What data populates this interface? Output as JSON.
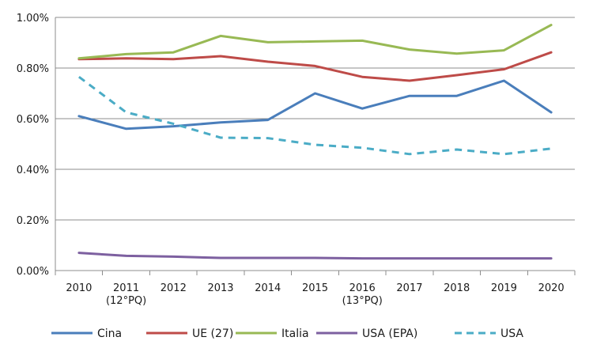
{
  "chart_data": {
    "type": "line",
    "x_labels": [
      [
        "2010"
      ],
      [
        "2011",
        "(12°PQ)"
      ],
      [
        "2012"
      ],
      [
        "2013"
      ],
      [
        "2014"
      ],
      [
        "2015"
      ],
      [
        "2016",
        "(13°PQ)"
      ],
      [
        "2017"
      ],
      [
        "2018"
      ],
      [
        "2019"
      ],
      [
        "2020"
      ]
    ],
    "y_ticks": [
      "0.00%",
      "0.20%",
      "0.40%",
      "0.60%",
      "0.80%",
      "1.00%"
    ],
    "y_tick_values": [
      0,
      0.2,
      0.4,
      0.6,
      0.8,
      1.0
    ],
    "ylim": [
      0,
      1.0
    ],
    "y_unit": "%",
    "grid": "horizontal",
    "legend_position": "bottom",
    "series": [
      {
        "name": "Cina",
        "color": "#4a7ebb",
        "dashed": false,
        "values": [
          0.61,
          0.56,
          0.57,
          0.585,
          0.595,
          0.7,
          0.64,
          0.69,
          0.69,
          0.75,
          0.625
        ]
      },
      {
        "name": "UE (27)",
        "color": "#be4b48",
        "dashed": false,
        "values": [
          0.835,
          0.838,
          0.835,
          0.847,
          0.825,
          0.808,
          0.765,
          0.75,
          0.772,
          0.795,
          0.862
        ]
      },
      {
        "name": "Italia",
        "color": "#98b954",
        "dashed": false,
        "values": [
          0.838,
          0.855,
          0.862,
          0.927,
          0.902,
          0.905,
          0.908,
          0.873,
          0.857,
          0.87,
          0.97
        ]
      },
      {
        "name": "USA (EPA)",
        "color": "#7d60a0",
        "dashed": false,
        "values": [
          0.07,
          0.058,
          0.055,
          0.05,
          0.05,
          0.05,
          0.048,
          0.048,
          0.048,
          0.048,
          0.048
        ]
      },
      {
        "name": "USA",
        "color": "#4bacc6",
        "dashed": true,
        "values": [
          0.765,
          0.625,
          0.58,
          0.525,
          0.523,
          0.497,
          0.485,
          0.46,
          0.478,
          0.46,
          0.482
        ]
      }
    ]
  }
}
